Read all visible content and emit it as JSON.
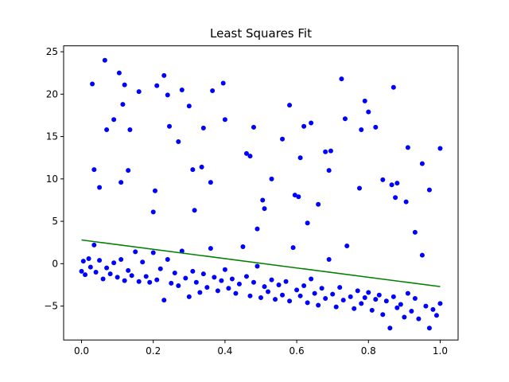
{
  "chart_data": {
    "type": "scatter",
    "title": "Least Squares Fit",
    "xlabel": "",
    "ylabel": "",
    "xlim": [
      -0.05,
      1.05
    ],
    "ylim": [
      -9.0,
      25.7
    ],
    "xticks": [
      0.0,
      0.2,
      0.4,
      0.6,
      0.8,
      1.0
    ],
    "xtick_labels": [
      "0.0",
      "0.2",
      "0.4",
      "0.6",
      "0.8",
      "1.0"
    ],
    "yticks": [
      -5,
      0,
      5,
      10,
      15,
      20,
      25
    ],
    "ytick_labels": [
      "−5",
      "0",
      "5",
      "10",
      "15",
      "20",
      "25"
    ],
    "grid": false,
    "colors": {
      "points": "#0000ff",
      "fit_line": "#008000",
      "axes": "#000000"
    },
    "fit_line": {
      "x": [
        0.0,
        1.0
      ],
      "y": [
        2.8,
        -2.7
      ]
    },
    "outliers": {
      "x": [
        0.03,
        0.035,
        0.05,
        0.065,
        0.07,
        0.09,
        0.105,
        0.11,
        0.115,
        0.12,
        0.13,
        0.135,
        0.16,
        0.2,
        0.205,
        0.21,
        0.23,
        0.24,
        0.245,
        0.27,
        0.28,
        0.3,
        0.31,
        0.315,
        0.335,
        0.34,
        0.36,
        0.365,
        0.395,
        0.4,
        0.46,
        0.47,
        0.48,
        0.49,
        0.505,
        0.51,
        0.53,
        0.56,
        0.58,
        0.595,
        0.605,
        0.61,
        0.62,
        0.63,
        0.64,
        0.66,
        0.68,
        0.69,
        0.695,
        0.725,
        0.735,
        0.775,
        0.78,
        0.79,
        0.8,
        0.82,
        0.84,
        0.865,
        0.87,
        0.875,
        0.88,
        0.905,
        0.91,
        0.93,
        0.95,
        0.97,
        1.0
      ],
      "y": [
        21.2,
        11.1,
        9.0,
        24.0,
        15.8,
        17.0,
        22.5,
        9.6,
        18.8,
        21.1,
        11.0,
        15.8,
        20.3,
        6.1,
        8.6,
        21.0,
        22.2,
        19.9,
        16.2,
        14.4,
        20.5,
        18.6,
        11.1,
        6.3,
        11.4,
        16.0,
        9.6,
        20.4,
        21.3,
        17.0,
        13.0,
        12.7,
        16.1,
        4.1,
        7.5,
        6.5,
        10.0,
        14.7,
        18.7,
        8.1,
        7.9,
        12.5,
        16.2,
        4.8,
        16.6,
        7.0,
        13.2,
        11.0,
        13.3,
        21.8,
        17.1,
        8.9,
        15.8,
        19.2,
        17.9,
        16.1,
        9.9,
        9.3,
        20.8,
        7.8,
        9.5,
        7.3,
        13.7,
        3.7,
        11.8,
        8.7,
        13.6
      ]
    },
    "cluster": {
      "x": [
        0.0,
        0.005,
        0.01,
        0.02,
        0.025,
        0.035,
        0.04,
        0.05,
        0.06,
        0.07,
        0.08,
        0.09,
        0.1,
        0.11,
        0.12,
        0.13,
        0.14,
        0.15,
        0.16,
        0.17,
        0.18,
        0.19,
        0.2,
        0.21,
        0.22,
        0.23,
        0.24,
        0.25,
        0.26,
        0.27,
        0.28,
        0.29,
        0.3,
        0.31,
        0.32,
        0.33,
        0.34,
        0.35,
        0.36,
        0.37,
        0.38,
        0.39,
        0.4,
        0.41,
        0.42,
        0.43,
        0.44,
        0.45,
        0.46,
        0.47,
        0.48,
        0.49,
        0.5,
        0.51,
        0.52,
        0.53,
        0.54,
        0.55,
        0.56,
        0.57,
        0.58,
        0.59,
        0.6,
        0.61,
        0.62,
        0.63,
        0.64,
        0.65,
        0.66,
        0.67,
        0.68,
        0.69,
        0.7,
        0.71,
        0.72,
        0.73,
        0.74,
        0.75,
        0.76,
        0.77,
        0.78,
        0.79,
        0.8,
        0.81,
        0.82,
        0.83,
        0.84,
        0.85,
        0.86,
        0.87,
        0.88,
        0.89,
        0.9,
        0.91,
        0.92,
        0.93,
        0.94,
        0.95,
        0.96,
        0.97,
        0.98,
        0.99,
        1.0
      ],
      "y": [
        -0.9,
        0.3,
        -1.3,
        0.6,
        -0.4,
        2.2,
        -1.0,
        0.4,
        -1.8,
        -0.5,
        -1.2,
        0.1,
        -1.6,
        0.5,
        -2.0,
        -0.8,
        -1.4,
        1.4,
        -2.1,
        0.2,
        -1.5,
        -2.2,
        1.3,
        -1.9,
        -0.6,
        -4.3,
        0.5,
        -2.3,
        -1.1,
        -2.6,
        1.5,
        -1.7,
        -3.9,
        -0.9,
        -2.2,
        -3.4,
        -1.2,
        -2.8,
        1.8,
        -1.6,
        -3.2,
        -2.0,
        -0.7,
        -2.9,
        -1.8,
        -3.5,
        -2.4,
        2.0,
        -1.5,
        -3.8,
        -2.2,
        -0.3,
        -4.0,
        -2.7,
        -3.3,
        -1.9,
        -4.2,
        -2.5,
        -3.7,
        -2.1,
        -4.4,
        1.9,
        -3.1,
        -3.8,
        -2.6,
        -4.6,
        -1.8,
        -3.5,
        -4.9,
        -2.9,
        -4.1,
        0.5,
        -3.6,
        -5.1,
        -2.8,
        -4.3,
        2.1,
        -3.9,
        -5.3,
        -3.2,
        -4.7,
        -4.0,
        -3.4,
        -5.5,
        -4.2,
        -3.7,
        -6.0,
        -4.4,
        -7.6,
        -3.9,
        -5.2,
        -4.8,
        -6.3,
        -3.5,
        -5.6,
        -4.1,
        -6.5,
        1.0,
        -5.0,
        -7.6,
        -5.4,
        -6.1,
        -4.7
      ]
    }
  }
}
